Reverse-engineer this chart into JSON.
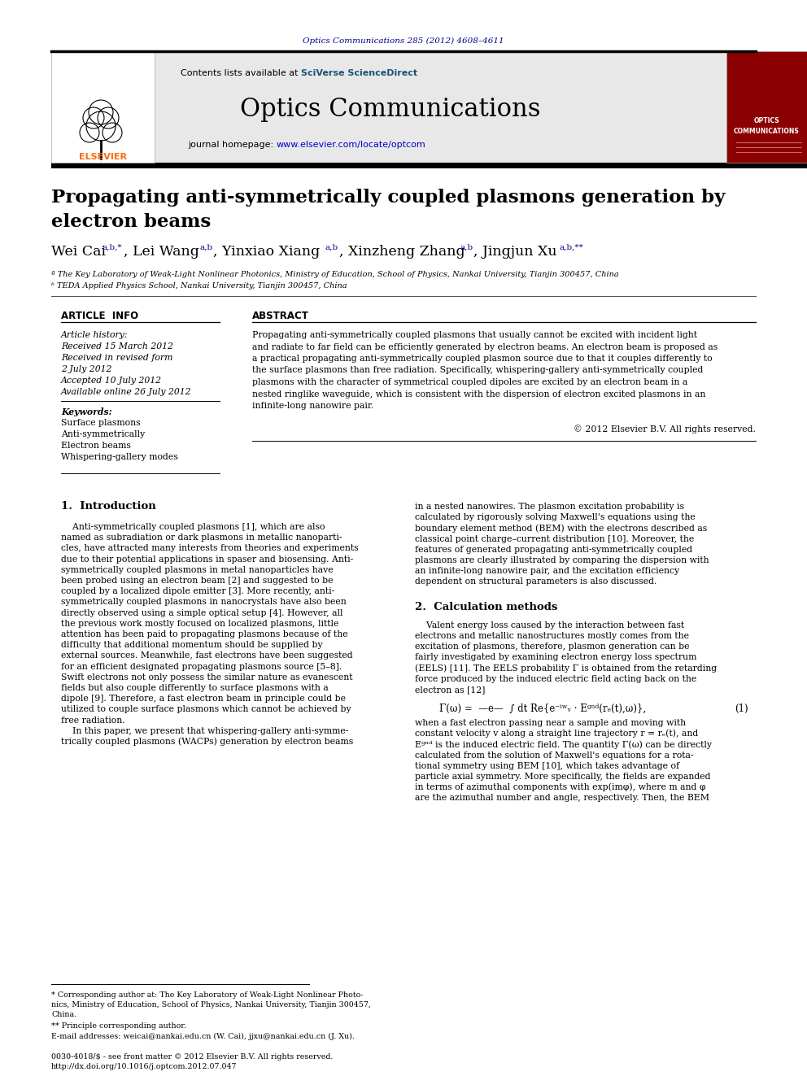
{
  "page_title": "Optics Communications 285 (2012) 4608–4611",
  "journal_name": "Optics Communications",
  "contents_line": "Contents lists available at SciVerse ScienceDirect",
  "journal_homepage": "journal homepage: www.elsevier.com/locate/optcom",
  "paper_title_line1": "Propagating anti-symmetrically coupled plasmons generation by",
  "paper_title_line2": "electron beams",
  "affil_a": "ª The Key Laboratory of Weak-Light Nonlinear Photonics, Ministry of Education, School of Physics, Nankai University, Tianjin 300457, China",
  "affil_b": "ᵇ TEDA Applied Physics School, Nankai University, Tianjin 300457, China",
  "article_info_header": "ARTICLE  INFO",
  "abstract_header": "ABSTRACT",
  "article_history_label": "Article history:",
  "received": "Received 15 March 2012",
  "received_revised1": "Received in revised form",
  "received_revised2": "2 July 2012",
  "accepted": "Accepted 10 July 2012",
  "available": "Available online 26 July 2012",
  "keywords_label": "Keywords:",
  "keyword1": "Surface plasmons",
  "keyword2": "Anti-symmetrically",
  "keyword3": "Electron beams",
  "keyword4": "Whispering-gallery modes",
  "abstract_text": "Propagating anti-symmetrically coupled plasmons that usually cannot be excited with incident light\nand radiate to far field can be efficiently generated by electron beams. An electron beam is proposed as\na practical propagating anti-symmetrically coupled plasmon source due to that it couples differently to\nthe surface plasmons than free radiation. Specifically, whispering-gallery anti-symmetrically coupled\nplasmons with the character of symmetrical coupled dipoles are excited by an electron beam in a\nnested ringlike waveguide, which is consistent with the dispersion of electron excited plasmons in an\ninfinite-long nanowire pair.",
  "copyright": "© 2012 Elsevier B.V. All rights reserved.",
  "section1_header": "1.  Introduction",
  "section1_col1_lines": [
    "    Anti-symmetrically coupled plasmons [1], which are also",
    "named as subradiation or dark plasmons in metallic nanoparti-",
    "cles, have attracted many interests from theories and experiments",
    "due to their potential applications in spaser and biosensing. Anti-",
    "symmetrically coupled plasmons in metal nanoparticles have",
    "been probed using an electron beam [2] and suggested to be",
    "coupled by a localized dipole emitter [3]. More recently, anti-",
    "symmetrically coupled plasmons in nanocrystals have also been",
    "directly observed using a simple optical setup [4]. However, all",
    "the previous work mostly focused on localized plasmons, little",
    "attention has been paid to propagating plasmons because of the",
    "difficulty that additional momentum should be supplied by",
    "external sources. Meanwhile, fast electrons have been suggested",
    "for an efficient designated propagating plasmons source [5–8].",
    "Swift electrons not only possess the similar nature as evanescent",
    "fields but also couple differently to surface plasmons with a",
    "dipole [9]. Therefore, a fast electron beam in principle could be",
    "utilized to couple surface plasmons which cannot be achieved by",
    "free radiation.",
    "    In this paper, we present that whispering-gallery anti-symme-",
    "trically coupled plasmons (WACPs) generation by electron beams"
  ],
  "section1_col2_lines": [
    "in a nested nanowires. The plasmon excitation probability is",
    "calculated by rigorously solving Maxwell's equations using the",
    "boundary element method (BEM) with the electrons described as",
    "classical point charge–current distribution [10]. Moreover, the",
    "features of generated propagating anti-symmetrically coupled",
    "plasmons are clearly illustrated by comparing the dispersion with",
    "an infinite-long nanowire pair, and the excitation efficiency",
    "dependent on structural parameters is also discussed."
  ],
  "section2_header": "2.  Calculation methods",
  "section2_col2_lines": [
    "    Valent energy loss caused by the interaction between fast",
    "electrons and metallic nanostructures mostly comes from the",
    "excitation of plasmons, therefore, plasmon generation can be",
    "fairly investigated by examining electron energy loss spectrum",
    "(EELS) [11]. The EELS probability Γ is obtained from the retarding",
    "force produced by the induced electric field acting back on the",
    "electron as [12]"
  ],
  "equation": "Γ(ω) =  —e—  ∫ dt Re{e⁻ⁱʷᵥ · Eᶢⁿᵈ(rₑ(t),ω)},",
  "eq_number": "(1)",
  "section2_after_lines": [
    "when a fast electron passing near a sample and moving with",
    "constant velocity v along a straight line trajectory r = rₑ(t), and",
    "Eᶢⁿᵈ is the induced electric field. The quantity Γ(ω) can be directly",
    "calculated from the solution of Maxwell's equations for a rota-",
    "tional symmetry using BEM [10], which takes advantage of",
    "particle axial symmetry. More specifically, the fields are expanded",
    "in terms of azimuthal components with exp(imφ), where m and φ",
    "are the azimuthal number and angle, respectively. Then, the BEM"
  ],
  "footnote1_lines": [
    "* Corresponding author at: The Key Laboratory of Weak-Light Nonlinear Photo-",
    "nics, Ministry of Education, School of Physics, Nankai University, Tianjin 300457,",
    "China."
  ],
  "footnote2": "** Principle corresponding author.",
  "footnote3": "E-mail addresses: weicai@nankai.edu.cn (W. Cai), jjxu@nankai.edu.cn (J. Xu).",
  "issn_line1": "0030-4018/$ - see front matter © 2012 Elsevier B.V. All rights reserved.",
  "issn_line2": "http://dx.doi.org/10.1016/j.optcom.2012.07.047",
  "bg_header": "#e8e8e8",
  "color_blue_dark": "#00008B",
  "color_orange": "#FF6600",
  "color_sciverse": "#1a5276",
  "color_link": "#0000CD",
  "color_red_dark": "#8B0000"
}
